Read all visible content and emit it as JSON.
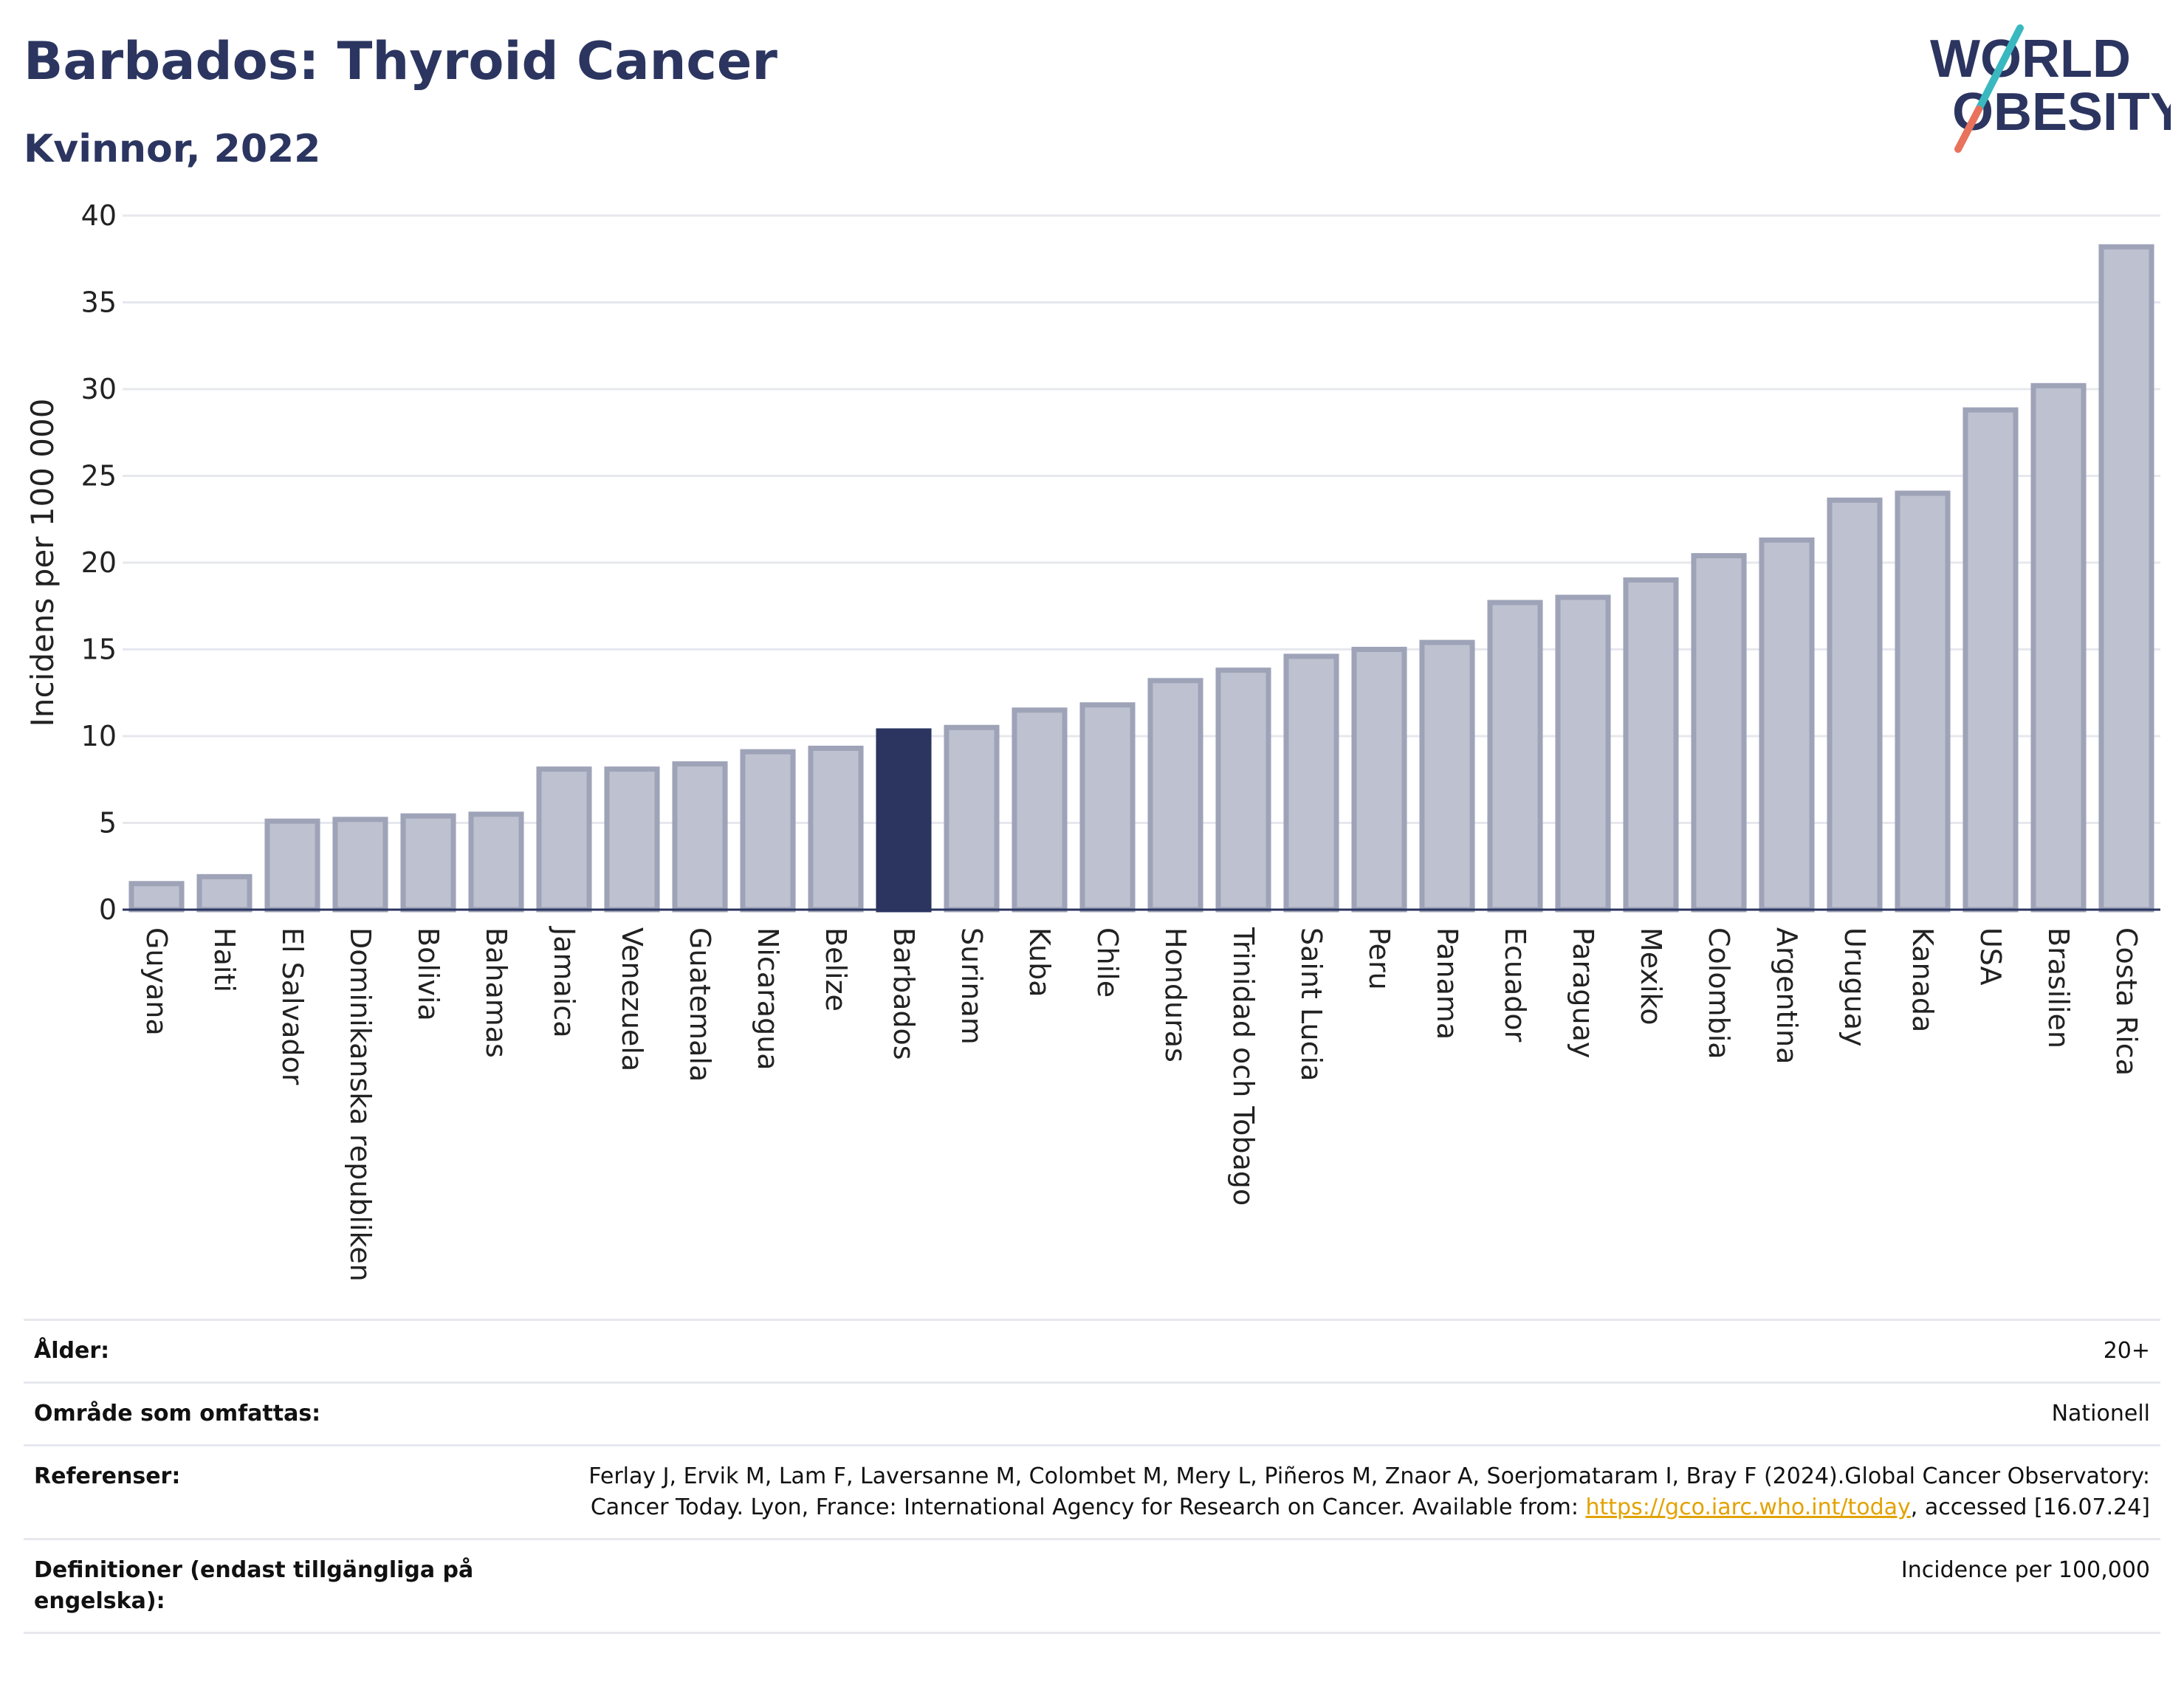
{
  "header": {
    "title": "Barbados: Thyroid Cancer",
    "subtitle": "Kvinnor, 2022"
  },
  "logo": {
    "line1": "WORLD",
    "line2": "OBESITY"
  },
  "colors": {
    "highlight": "#2b3560",
    "bar_fill": "#bec1cf",
    "bar_stroke": "#9ea3b8",
    "grid": "#e6e8ee",
    "text": "#2b3560"
  },
  "chart_data": {
    "type": "bar",
    "title": "Barbados: Thyroid Cancer",
    "subtitle": "Kvinnor, 2022",
    "ylabel": "Incidens per 100 000",
    "ylim": [
      0,
      40
    ],
    "yticks": [
      0,
      5,
      10,
      15,
      20,
      25,
      30,
      35,
      40
    ],
    "grid": true,
    "highlight_category": "Barbados",
    "categories": [
      "Guyana",
      "Haiti",
      "El Salvador",
      "Dominikanska republiken",
      "Bolivia",
      "Bahamas",
      "Jamaica",
      "Venezuela",
      "Guatemala",
      "Nicaragua",
      "Belize",
      "Barbados",
      "Surinam",
      "Kuba",
      "Chile",
      "Honduras",
      "Trinidad och Tobago",
      "Saint Lucia",
      "Peru",
      "Panama",
      "Ecuador",
      "Paraguay",
      "Mexiko",
      "Colombia",
      "Argentina",
      "Uruguay",
      "Kanada",
      "USA",
      "Brasilien",
      "Costa Rica"
    ],
    "values": [
      1.5,
      1.9,
      5.1,
      5.2,
      5.4,
      5.5,
      8.1,
      8.1,
      8.4,
      9.1,
      9.3,
      10.3,
      10.5,
      11.5,
      11.8,
      13.2,
      13.8,
      14.6,
      15.0,
      15.4,
      17.7,
      18.0,
      19.0,
      20.4,
      21.3,
      23.6,
      24.0,
      28.8,
      30.2,
      38.2
    ]
  },
  "meta": {
    "age_label": "Ålder:",
    "age_value": "20+",
    "area_label": "Område som omfattas:",
    "area_value": "Nationell",
    "ref_label": "Referenser:",
    "ref_text_1": "Ferlay J, Ervik M, Lam F, Laversanne M, Colombet M, Mery L, Piñeros M, Znaor A, Soerjomataram I, Bray F (2024).Global Cancer Observatory: Cancer Today. Lyon, France: International Agency for Research on Cancer. Available from: ",
    "ref_link": "https://gco.iarc.who.int/today",
    "ref_text_2": ", accessed [16.07.24]",
    "def_label": "Definitioner (endast tillgängliga på engelska):",
    "def_value": "Incidence per 100,000"
  }
}
